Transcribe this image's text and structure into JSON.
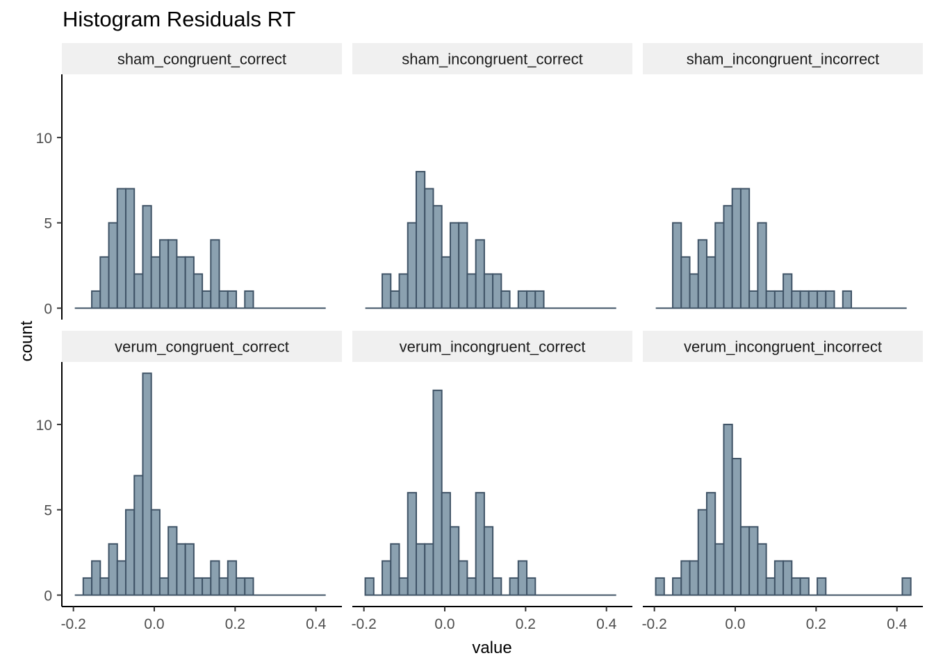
{
  "chart_data": {
    "type": "bar",
    "title": "Histogram Residuals RT",
    "xlabel": "value",
    "ylabel": "count",
    "x_ticks": [
      "-0.2",
      "0.0",
      "0.2",
      "0.4"
    ],
    "x_tick_values": [
      -0.2,
      0.0,
      0.2,
      0.4
    ],
    "y_ticks": [
      "0",
      "5",
      "10"
    ],
    "y_tick_values": [
      0,
      5,
      10
    ],
    "xlim": [
      -0.23,
      0.45
    ],
    "ylim": [
      0,
      13.5
    ],
    "grid": false,
    "layout": "facet grid, 2 rows x 3 columns",
    "bar_fill": "#8BA1B0",
    "bar_stroke": "#3F5366",
    "strip_fill": "#F0F0F0",
    "bin_width": 0.02103,
    "baseline_range": [
      -0.1966,
      0.4241
    ],
    "panels": [
      {
        "name": "sham_congruent_correct",
        "bins": [
          {
            "x": -0.1441,
            "count": 1
          },
          {
            "x": -0.1231,
            "count": 3
          },
          {
            "x": -0.102,
            "count": 5
          },
          {
            "x": -0.081,
            "count": 7
          },
          {
            "x": -0.06,
            "count": 7
          },
          {
            "x": -0.0389,
            "count": 2
          },
          {
            "x": -0.0179,
            "count": 6
          },
          {
            "x": 0.0031,
            "count": 3
          },
          {
            "x": 0.0242,
            "count": 4
          },
          {
            "x": 0.0452,
            "count": 4
          },
          {
            "x": 0.0662,
            "count": 3
          },
          {
            "x": 0.0873,
            "count": 3
          },
          {
            "x": 0.1083,
            "count": 2
          },
          {
            "x": 0.1293,
            "count": 1
          },
          {
            "x": 0.1503,
            "count": 4
          },
          {
            "x": 0.1714,
            "count": 1
          },
          {
            "x": 0.1924,
            "count": 1
          },
          {
            "x": 0.2345,
            "count": 1
          }
        ]
      },
      {
        "name": "sham_incongruent_correct",
        "bins": [
          {
            "x": -0.1441,
            "count": 2
          },
          {
            "x": -0.1231,
            "count": 1
          },
          {
            "x": -0.102,
            "count": 2
          },
          {
            "x": -0.081,
            "count": 5
          },
          {
            "x": -0.06,
            "count": 8
          },
          {
            "x": -0.0389,
            "count": 7
          },
          {
            "x": -0.0179,
            "count": 6
          },
          {
            "x": 0.0031,
            "count": 3
          },
          {
            "x": 0.0242,
            "count": 5
          },
          {
            "x": 0.0452,
            "count": 5
          },
          {
            "x": 0.0662,
            "count": 2
          },
          {
            "x": 0.0873,
            "count": 4
          },
          {
            "x": 0.1083,
            "count": 2
          },
          {
            "x": 0.1293,
            "count": 2
          },
          {
            "x": 0.1503,
            "count": 1
          },
          {
            "x": 0.1924,
            "count": 1
          },
          {
            "x": 0.2135,
            "count": 1
          },
          {
            "x": 0.2345,
            "count": 1
          }
        ]
      },
      {
        "name": "sham_incongruent_incorrect",
        "bins": [
          {
            "x": -0.1441,
            "count": 5
          },
          {
            "x": -0.1231,
            "count": 3
          },
          {
            "x": -0.102,
            "count": 2
          },
          {
            "x": -0.081,
            "count": 4
          },
          {
            "x": -0.06,
            "count": 3
          },
          {
            "x": -0.0389,
            "count": 5
          },
          {
            "x": -0.0179,
            "count": 6
          },
          {
            "x": 0.0031,
            "count": 7
          },
          {
            "x": 0.0242,
            "count": 7
          },
          {
            "x": 0.0452,
            "count": 1
          },
          {
            "x": 0.0662,
            "count": 5
          },
          {
            "x": 0.0873,
            "count": 1
          },
          {
            "x": 0.1083,
            "count": 1
          },
          {
            "x": 0.1293,
            "count": 2
          },
          {
            "x": 0.1503,
            "count": 1
          },
          {
            "x": 0.1714,
            "count": 1
          },
          {
            "x": 0.1924,
            "count": 1
          },
          {
            "x": 0.2135,
            "count": 1
          },
          {
            "x": 0.2345,
            "count": 1
          },
          {
            "x": 0.2766,
            "count": 1
          }
        ]
      },
      {
        "name": "verum_congruent_correct",
        "bins": [
          {
            "x": -0.1652,
            "count": 1
          },
          {
            "x": -0.1441,
            "count": 2
          },
          {
            "x": -0.1231,
            "count": 1
          },
          {
            "x": -0.102,
            "count": 3
          },
          {
            "x": -0.081,
            "count": 2
          },
          {
            "x": -0.06,
            "count": 5
          },
          {
            "x": -0.0389,
            "count": 7
          },
          {
            "x": -0.0179,
            "count": 13
          },
          {
            "x": 0.0031,
            "count": 5
          },
          {
            "x": 0.0242,
            "count": 1
          },
          {
            "x": 0.0452,
            "count": 4
          },
          {
            "x": 0.0662,
            "count": 3
          },
          {
            "x": 0.0873,
            "count": 3
          },
          {
            "x": 0.1083,
            "count": 1
          },
          {
            "x": 0.1293,
            "count": 1
          },
          {
            "x": 0.1503,
            "count": 2
          },
          {
            "x": 0.1714,
            "count": 1
          },
          {
            "x": 0.1924,
            "count": 2
          },
          {
            "x": 0.2135,
            "count": 1
          },
          {
            "x": 0.2345,
            "count": 1
          }
        ]
      },
      {
        "name": "verum_incongruent_correct",
        "bins": [
          {
            "x": -0.1862,
            "count": 1
          },
          {
            "x": -0.1441,
            "count": 2
          },
          {
            "x": -0.1231,
            "count": 3
          },
          {
            "x": -0.102,
            "count": 1
          },
          {
            "x": -0.081,
            "count": 6
          },
          {
            "x": -0.06,
            "count": 3
          },
          {
            "x": -0.0389,
            "count": 3
          },
          {
            "x": -0.0179,
            "count": 12
          },
          {
            "x": 0.0031,
            "count": 6
          },
          {
            "x": 0.0242,
            "count": 4
          },
          {
            "x": 0.0452,
            "count": 2
          },
          {
            "x": 0.0662,
            "count": 1
          },
          {
            "x": 0.0873,
            "count": 6
          },
          {
            "x": 0.1083,
            "count": 4
          },
          {
            "x": 0.1293,
            "count": 1
          },
          {
            "x": 0.1714,
            "count": 1
          },
          {
            "x": 0.1924,
            "count": 2
          },
          {
            "x": 0.2135,
            "count": 1
          }
        ]
      },
      {
        "name": "verum_incongruent_incorrect",
        "bins": [
          {
            "x": -0.1862,
            "count": 1
          },
          {
            "x": -0.1441,
            "count": 1
          },
          {
            "x": -0.1231,
            "count": 2
          },
          {
            "x": -0.102,
            "count": 2
          },
          {
            "x": -0.081,
            "count": 5
          },
          {
            "x": -0.06,
            "count": 6
          },
          {
            "x": -0.0389,
            "count": 3
          },
          {
            "x": -0.0179,
            "count": 10
          },
          {
            "x": 0.0031,
            "count": 8
          },
          {
            "x": 0.0242,
            "count": 4
          },
          {
            "x": 0.0452,
            "count": 4
          },
          {
            "x": 0.0662,
            "count": 3
          },
          {
            "x": 0.0873,
            "count": 1
          },
          {
            "x": 0.1083,
            "count": 2
          },
          {
            "x": 0.1293,
            "count": 2
          },
          {
            "x": 0.1503,
            "count": 1
          },
          {
            "x": 0.1714,
            "count": 1
          },
          {
            "x": 0.2135,
            "count": 1
          },
          {
            "x": 0.4238,
            "count": 1
          }
        ]
      }
    ]
  }
}
